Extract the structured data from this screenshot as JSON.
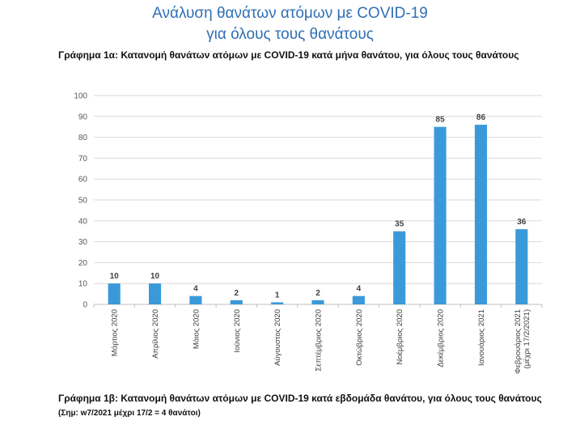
{
  "page": {
    "title_line1": "Ανάλυση θανάτων ατόμων με COVID-19",
    "title_line2": "για όλους τους θανάτους",
    "caption_top": "Γράφημα 1α: Κατανομή θανάτων ατόμων με COVID-19 κατά μήνα θανάτου, για όλους τους θανάτους",
    "caption_bottom": "Γράφημα 1β: Κατανομή θανάτων ατόμων με COVID-19 κατά εβδομάδα θανάτου, για όλους τους θανάτους",
    "caption_bottom_note": "(Σημ: w7/2021 μέχρι 17/2 = 4 θανάτοι)"
  },
  "chart_data": {
    "type": "bar",
    "categories": [
      "Μάρτιος 2020",
      "Απρίλιος 2020",
      "Μάιος 2020",
      "Ιούνιος 2020",
      "Αύγουστος 2020",
      "Σεπτέμβριος 2020",
      "Οκτώβριος 2020",
      "Νοέμβριος 2020",
      "Δεκέμβριος 2020",
      "Ιανουάριος 2021",
      [
        "Φεβρουάριος 2021",
        "(μέχρι 17/2/2021)"
      ]
    ],
    "values": [
      10,
      10,
      4,
      2,
      1,
      2,
      4,
      35,
      85,
      86,
      36
    ],
    "ylim": [
      0,
      100
    ],
    "yticks": [
      0,
      10,
      20,
      30,
      40,
      50,
      60,
      70,
      80,
      90,
      100
    ],
    "grid": true,
    "data_labels": true,
    "bar_color": "#3a9ad9",
    "grid_color": "#d9d9d9"
  }
}
